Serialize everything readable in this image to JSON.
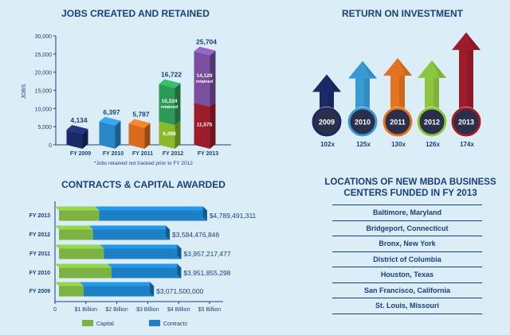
{
  "jobs": {
    "title": "JOBS CREATED AND RETAINED",
    "ylabel": "JOBS",
    "footnote": "*Jobs retained not tracked prior to FY 2012",
    "chart_data": {
      "type": "bar",
      "categories": [
        "FY 2009",
        "FY 2010",
        "FY 2011",
        "FY 2012",
        "FY 2013"
      ],
      "totals": [
        4134,
        6397,
        5787,
        16722,
        25704
      ],
      "total_labels": [
        "4,134",
        "6,397",
        "5,787",
        "16,722",
        "25,704"
      ],
      "created": [
        4134,
        6397,
        5787,
        6498,
        11575
      ],
      "created_labels": [
        "",
        "",
        "",
        "6,498",
        "11,575"
      ],
      "retained": [
        0,
        0,
        0,
        10224,
        14129
      ],
      "retained_labels": [
        "",
        "",
        "",
        "10,224",
        "14,129"
      ],
      "retained_word": "retained",
      "ylim": [
        0,
        30000
      ],
      "yticks": [
        0,
        5000,
        10000,
        15000,
        20000,
        25000,
        30000
      ],
      "ytick_labels": [
        "0",
        "5,000",
        "10,000",
        "15,000",
        "20,000",
        "25,000",
        "30,000"
      ],
      "colors": [
        "#1a2a66",
        "#2a86c5",
        "#d86a1e",
        "#2b9a55",
        "#7a4f9f"
      ],
      "created_colors": [
        "#1a2a66",
        "#2a86c5",
        "#d86a1e",
        "#8cb82b",
        "#9c1c2a"
      ]
    }
  },
  "roi": {
    "title": "RETURN ON INVESTMENT",
    "chart_data": {
      "type": "bar",
      "categories": [
        "2009",
        "2010",
        "2011",
        "2012",
        "2013"
      ],
      "values": [
        102,
        125,
        130,
        126,
        174
      ],
      "value_labels": [
        "102x",
        "125x",
        "130x",
        "126x",
        "174x"
      ],
      "colors": [
        "#1a2a66",
        "#3a9ad6",
        "#e3731f",
        "#8cc63f",
        "#9c1c2a"
      ]
    }
  },
  "contracts": {
    "title": "CONTRACTS & CAPITAL AWARDED",
    "chart_data": {
      "type": "bar",
      "orientation": "horizontal",
      "categories": [
        "FY 2013",
        "FY 2012",
        "FY 2011",
        "FY 2010",
        "FY 2009"
      ],
      "series": [
        {
          "name": "Capital",
          "values": [
            1.3,
            1.1,
            1.45,
            1.7,
            0.8
          ],
          "color": "#7cb342"
        },
        {
          "name": "Contracts",
          "values": [
            3.489,
            2.484,
            2.507,
            2.252,
            2.27
          ],
          "color": "#1e7fc4"
        }
      ],
      "totals": [
        4.789,
        3.584,
        3.957,
        3.952,
        3.072
      ],
      "total_labels": [
        "$4,789,491,311",
        "$3,584,476,846",
        "$3,957,217,477",
        "$3,951,855,298",
        "$3,071,500,000"
      ],
      "xlim": [
        0,
        5
      ],
      "xticks": [
        0,
        1,
        2,
        3,
        4,
        5
      ],
      "xtick_labels": [
        "0",
        "$1 Billion",
        "$2 Billion",
        "$3 Billion",
        "$4 Billion",
        "$5 Billion"
      ],
      "legend": [
        "Capital",
        "Contracts"
      ]
    }
  },
  "locations": {
    "title_line1": "LOCATIONS OF NEW MBDA BUSINESS",
    "title_line2": "CENTERS FUNDED IN FY 2013",
    "items": [
      "Baltimore, Maryland",
      "Bridgeport, Connecticut",
      "Bronx, New York",
      "District of Columbia",
      "Houston, Texas",
      "San Francisco, California",
      "St. Louis, Missouri"
    ]
  }
}
